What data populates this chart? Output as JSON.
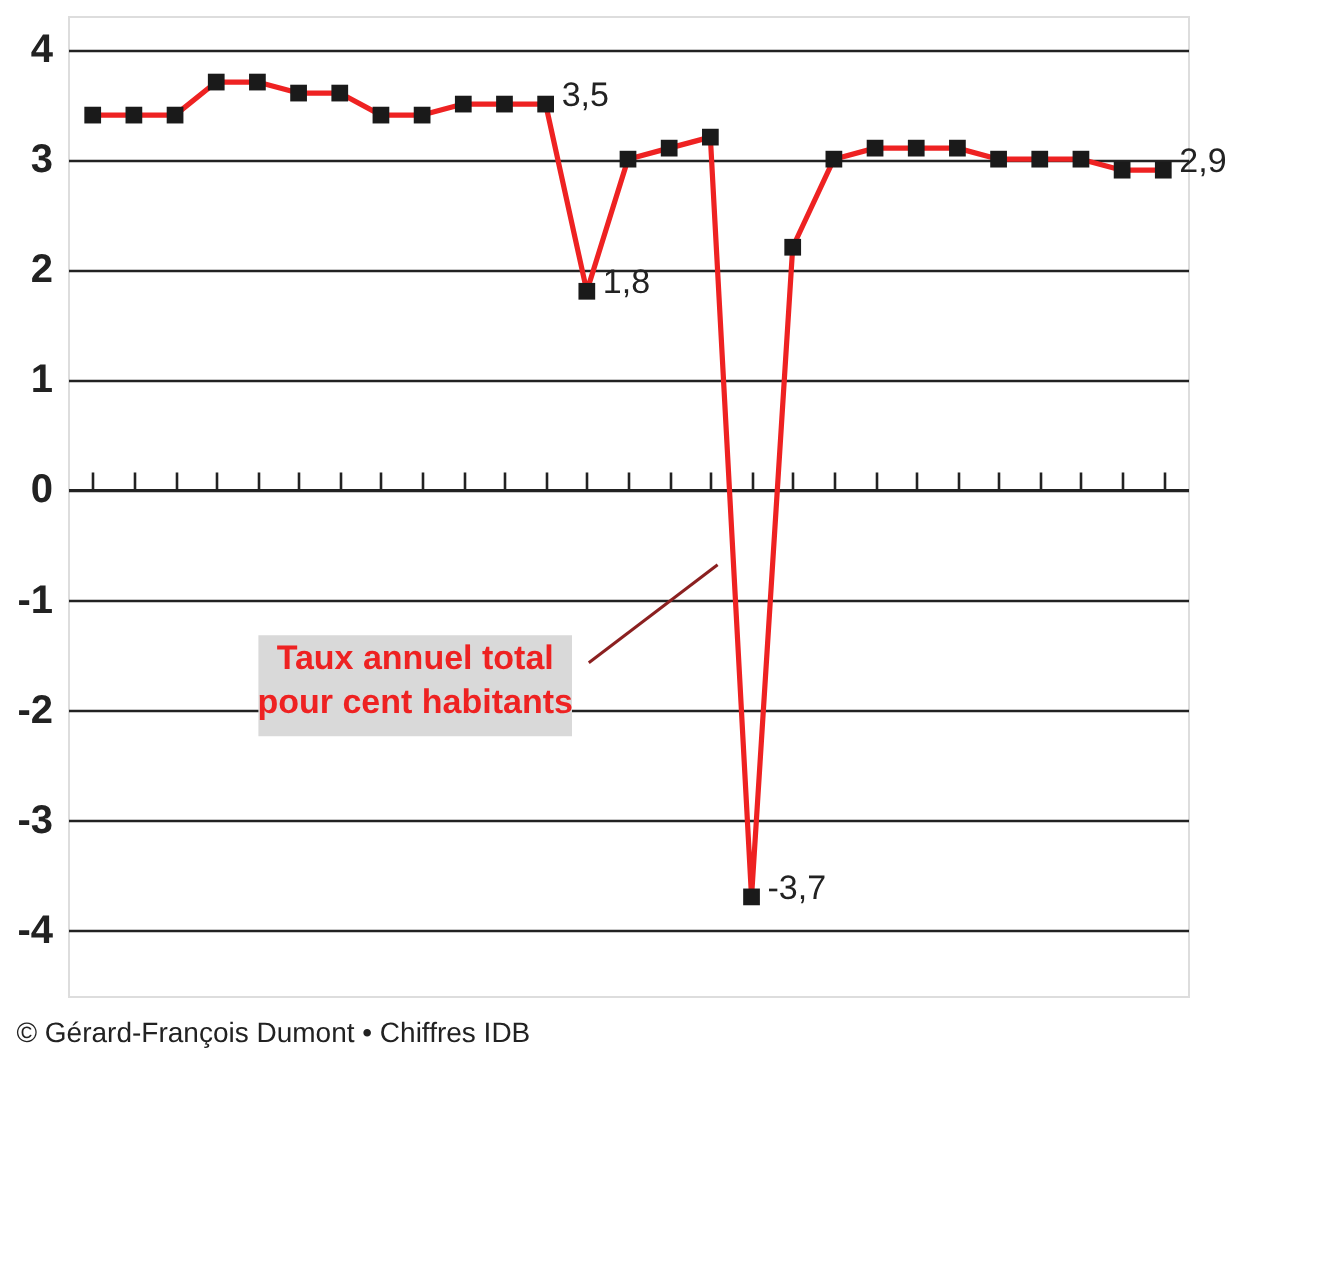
{
  "chart_data": {
    "type": "line",
    "categories": [
      null,
      null,
      null,
      null,
      null,
      null,
      null,
      null,
      null,
      null,
      null,
      null,
      null,
      null,
      null,
      null,
      null,
      null,
      null,
      null,
      null,
      null,
      null,
      null,
      null,
      null,
      null
    ],
    "series": [
      {
        "name": "Taux annuel total\npour cent habitants",
        "color": "#ee2222",
        "values": [
          3.4,
          3.4,
          3.4,
          3.7,
          3.7,
          3.6,
          3.6,
          3.4,
          3.4,
          3.5,
          3.5,
          3.5,
          1.8,
          3.0,
          3.1,
          3.2,
          -3.7,
          2.2,
          3.0,
          3.1,
          3.1,
          3.1,
          3.0,
          3.0,
          3.0,
          2.9,
          2.9
        ],
        "value_labels": [
          null,
          null,
          null,
          null,
          null,
          null,
          null,
          null,
          null,
          null,
          null,
          "3,5",
          "1,8",
          null,
          null,
          null,
          "-3,7",
          null,
          null,
          null,
          null,
          null,
          null,
          null,
          null,
          null,
          "2,9"
        ]
      }
    ],
    "ylim": [
      -4.6,
      4.3
    ],
    "yticks": [
      -4,
      -3,
      -2,
      -1,
      0,
      1,
      2,
      3,
      4
    ],
    "grid": "y",
    "marker": "square",
    "line_style": "solid",
    "annotations": [
      "© Gérard-François Dumont • Chiffres IDB"
    ]
  }
}
